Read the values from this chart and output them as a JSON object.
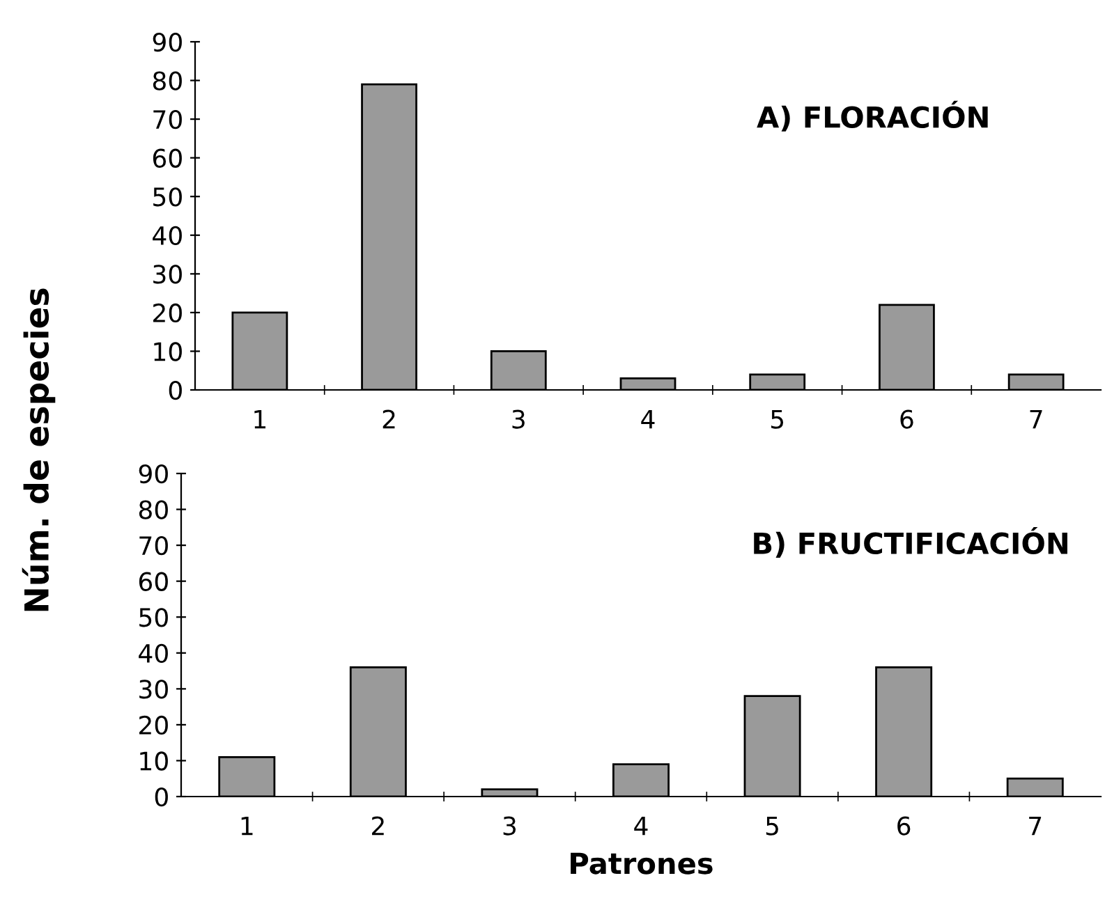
{
  "chart_data": [
    {
      "type": "bar",
      "title": "A) FLORACIÓN",
      "ylabel": "Núm. de especies",
      "categories": [
        "1",
        "2",
        "3",
        "4",
        "5",
        "6",
        "7"
      ],
      "values": [
        20,
        79,
        10,
        3,
        4,
        22,
        4
      ],
      "color": "#9a9a9a",
      "ylim": [
        0,
        90
      ],
      "yticks": [
        0,
        10,
        20,
        30,
        40,
        50,
        60,
        70,
        80,
        90
      ],
      "grid": false,
      "legend": false
    },
    {
      "type": "bar",
      "title": "B) FRUCTIFICACIÓN",
      "xlabel": "Patrones",
      "categories": [
        "1",
        "2",
        "3",
        "4",
        "5",
        "6",
        "7"
      ],
      "values": [
        11,
        36,
        2,
        9,
        28,
        36,
        5
      ],
      "color": "#9a9a9a",
      "ylim": [
        0,
        90
      ],
      "yticks": [
        0,
        10,
        20,
        30,
        40,
        50,
        60,
        70,
        80,
        90
      ],
      "grid": false,
      "legend": false
    }
  ]
}
